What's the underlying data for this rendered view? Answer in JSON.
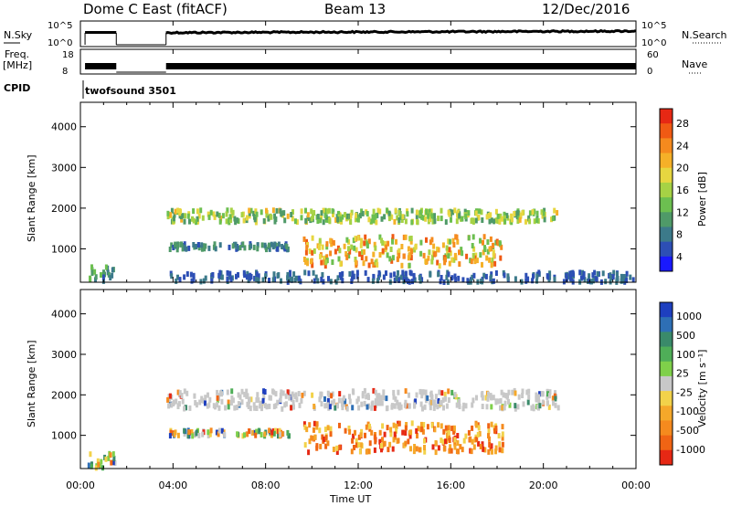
{
  "header": {
    "station": "Dome C East (fitACF)",
    "beam": "Beam 13",
    "date": "12/Dec/2016"
  },
  "top_panels": {
    "nsky_label": "N.Sky",
    "nsearch_label": "N.Search",
    "freq_label_1": "Freq.",
    "freq_label_2": "[MHz]",
    "nave_label": "Nave",
    "cpid_label": "CPID",
    "cpid_value": "twofsound 3501",
    "noise_ticks_left": [
      "10^5",
      "10^0"
    ],
    "noise_ticks_right": [
      "10^5",
      "10^0"
    ],
    "freq_ticks": [
      "18",
      "8"
    ],
    "nave_ticks": [
      "60",
      "0"
    ]
  },
  "chart_data": [
    {
      "type": "heatmap",
      "panel": "power",
      "ylabel": "Slant Range [km]",
      "xlabel": "",
      "x_range_hours": [
        0,
        24
      ],
      "ylim": [
        180,
        4600
      ],
      "yticks": [
        1000,
        2000,
        3000,
        4000
      ],
      "colorbar": {
        "label": "Power [dB]",
        "ticks": [
          "4",
          "8",
          "12",
          "16",
          "20",
          "24",
          "28"
        ],
        "colors": [
          "#1919ff",
          "#2d4fb5",
          "#3c7a8a",
          "#4f9a68",
          "#6cbf50",
          "#a6d245",
          "#e6d640",
          "#f5b028",
          "#f58a1e",
          "#f05a14",
          "#e62814"
        ]
      },
      "bands": [
        {
          "range_km": [
            180,
            560
          ],
          "hours": [
            0.3,
            1.6
          ],
          "intensity": 0.35
        },
        {
          "range_km": [
            1650,
            1950
          ],
          "hours": [
            3.7,
            20.6
          ],
          "intensity": 0.55
        },
        {
          "range_km": [
            580,
            1300
          ],
          "hours": [
            9.6,
            18.2
          ],
          "intensity": 0.75
        },
        {
          "range_km": [
            980,
            1120
          ],
          "hours": [
            3.8,
            9.0
          ],
          "intensity": 0.3
        },
        {
          "range_km": [
            180,
            420
          ],
          "hours": [
            3.8,
            24.0
          ],
          "intensity": 0.2
        }
      ]
    },
    {
      "type": "heatmap",
      "panel": "velocity",
      "ylabel": "Slant Range [km]",
      "xlabel": "Time UT",
      "x_range_hours": [
        0,
        24
      ],
      "x_tick_labels": [
        "00:00",
        "04:00",
        "08:00",
        "12:00",
        "16:00",
        "20:00",
        "00:00"
      ],
      "ylim": [
        180,
        4600
      ],
      "yticks": [
        1000,
        2000,
        3000,
        4000
      ],
      "colorbar": {
        "label": "Velocity [m s⁻¹]",
        "ticks": [
          "1000",
          "500",
          "100",
          "25",
          "-25",
          "-100",
          "-500",
          "-1000"
        ],
        "colors": [
          "#1e3fbf",
          "#2e6fb5",
          "#3a8a6a",
          "#4fae58",
          "#7fd04a",
          "#c8c8c8",
          "#f2d24a",
          "#f5a82a",
          "#f58a1e",
          "#f06414",
          "#e62814"
        ]
      },
      "bands": [
        {
          "range_km": [
            180,
            560
          ],
          "hours": [
            0.3,
            1.6
          ],
          "intensity": 0.35
        },
        {
          "range_km": [
            1650,
            2100
          ],
          "hours": [
            3.7,
            20.6
          ],
          "intensity": 0.55
        },
        {
          "range_km": [
            580,
            1300
          ],
          "hours": [
            9.6,
            18.2
          ],
          "intensity": 0.75
        },
        {
          "range_km": [
            980,
            1120
          ],
          "hours": [
            3.8,
            9.0
          ],
          "intensity": 0.3
        }
      ]
    }
  ],
  "gap_hours": [
    1.55,
    3.7
  ]
}
